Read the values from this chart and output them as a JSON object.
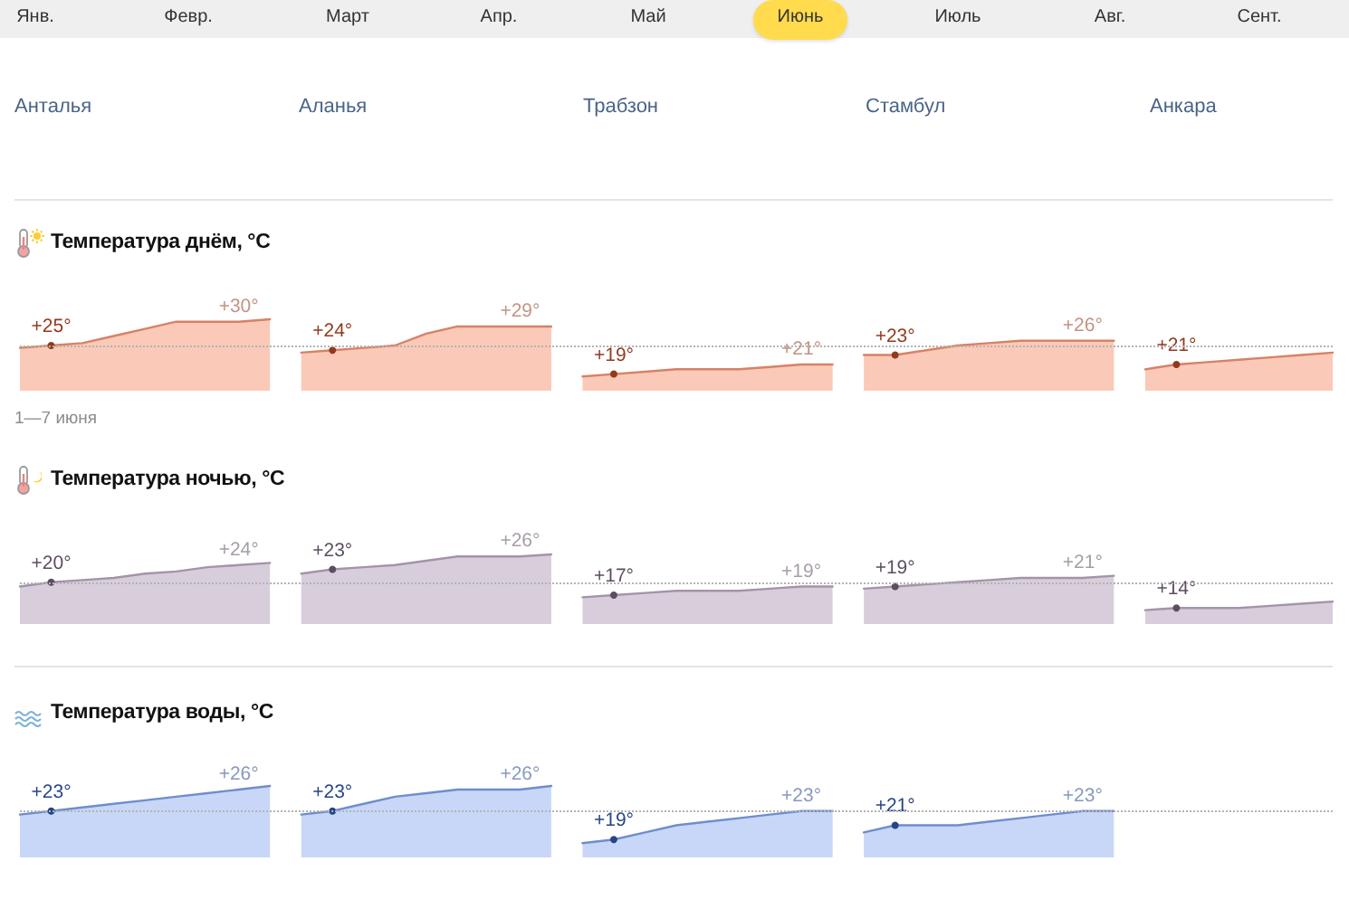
{
  "chart_data": [
    {
      "type": "other",
      "annotations": [
        "Янв.",
        "Февр.",
        "Март",
        "Апр.",
        "Май",
        "Июнь",
        "Июль",
        "Авг.",
        "Сент."
      ]
    },
    {
      "type": "other",
      "annotations": [
        "Анталья",
        "Аланья",
        "Трабзон",
        "Стамбул",
        "Анкара"
      ]
    },
    {
      "type": "area",
      "title": "Температура днём, °C",
      "categories": [
        null,
        null,
        null,
        null,
        null,
        null,
        null,
        null,
        null,
        null,
        null,
        null,
        null,
        null,
        null,
        null,
        null,
        null,
        null,
        null,
        null,
        null,
        null,
        null,
        null,
        null,
        null,
        null,
        null,
        null,
        null,
        null,
        null,
        null,
        null,
        null,
        null,
        null,
        null,
        null,
        null,
        null,
        null
      ],
      "series": [
        {
          "color": "#fbc9b8",
          "values": [
            24.5,
            25,
            25.5,
            27,
            28.5,
            30,
            30,
            30,
            30.5,
            null,
            null,
            null,
            null,
            null,
            null,
            null,
            null,
            null,
            null,
            null,
            null,
            null,
            null,
            null,
            null,
            null,
            null,
            null,
            null,
            null,
            null,
            null,
            null,
            null,
            null,
            null,
            null,
            null,
            null,
            null,
            null,
            null,
            null
          ],
          "value_labels": [
            null,
            "+25°",
            null,
            null,
            null,
            null,
            null,
            "+30°",
            null,
            null,
            null,
            null,
            null,
            null,
            null,
            null,
            null,
            null,
            null,
            null,
            null,
            null,
            null,
            null,
            null,
            null,
            null,
            null,
            null,
            null,
            null,
            null,
            null,
            null,
            null,
            null,
            null,
            null,
            null,
            null,
            null,
            null,
            null
          ]
        },
        {
          "color": "#fbc9b8",
          "values": [
            null,
            null,
            null,
            null,
            null,
            null,
            null,
            null,
            null,
            23.5,
            24,
            24.5,
            25,
            27.5,
            29,
            29,
            29,
            29,
            null,
            null,
            null,
            null,
            null,
            null,
            null,
            null,
            null,
            null,
            null,
            null,
            null,
            null,
            null,
            null,
            null,
            null,
            null,
            null,
            null,
            null,
            null,
            null,
            null
          ],
          "value_labels": [
            null,
            null,
            null,
            null,
            null,
            null,
            null,
            null,
            null,
            null,
            "+24°",
            null,
            null,
            null,
            null,
            null,
            "+29°",
            null,
            null,
            null,
            null,
            null,
            null,
            null,
            null,
            null,
            null,
            null,
            null,
            null,
            null,
            null,
            null,
            null,
            null,
            null,
            null,
            null,
            null,
            null,
            null,
            null,
            null
          ]
        },
        {
          "color": "#fbc9b8",
          "values": [
            null,
            null,
            null,
            null,
            null,
            null,
            null,
            null,
            null,
            null,
            null,
            null,
            null,
            null,
            null,
            null,
            null,
            null,
            18.5,
            19,
            19.5,
            20,
            20,
            20,
            20.5,
            21,
            21,
            null,
            null,
            null,
            null,
            null,
            null,
            null,
            null,
            null,
            null,
            null,
            null,
            null,
            null,
            null,
            null
          ],
          "value_labels": [
            null,
            null,
            null,
            null,
            null,
            null,
            null,
            null,
            null,
            null,
            null,
            null,
            null,
            null,
            null,
            null,
            null,
            null,
            null,
            "+19°",
            null,
            null,
            null,
            null,
            null,
            "+21°",
            null,
            null,
            null,
            null,
            null,
            null,
            null,
            null,
            null,
            null,
            null,
            null,
            null,
            null,
            null,
            null,
            null
          ]
        },
        {
          "color": "#fbc9b8",
          "values": [
            null,
            null,
            null,
            null,
            null,
            null,
            null,
            null,
            null,
            null,
            null,
            null,
            null,
            null,
            null,
            null,
            null,
            null,
            null,
            null,
            null,
            null,
            null,
            null,
            null,
            null,
            null,
            23,
            23,
            24,
            25,
            25.5,
            26,
            26,
            26,
            26,
            null,
            null,
            null,
            null,
            null,
            null,
            null
          ],
          "value_labels": [
            null,
            null,
            null,
            null,
            null,
            null,
            null,
            null,
            null,
            null,
            null,
            null,
            null,
            null,
            null,
            null,
            null,
            null,
            null,
            null,
            null,
            null,
            null,
            null,
            null,
            null,
            null,
            null,
            "+23°",
            null,
            null,
            null,
            null,
            null,
            "+26°",
            null,
            null,
            null,
            null,
            null,
            null,
            null,
            null
          ]
        },
        {
          "color": "#fbc9b8",
          "values": [
            null,
            null,
            null,
            null,
            null,
            null,
            null,
            null,
            null,
            null,
            null,
            null,
            null,
            null,
            null,
            null,
            null,
            null,
            null,
            null,
            null,
            null,
            null,
            null,
            null,
            null,
            null,
            null,
            null,
            null,
            null,
            null,
            null,
            null,
            null,
            null,
            20,
            21,
            21.5,
            22,
            22.5,
            23,
            23.5
          ],
          "value_labels": [
            null,
            null,
            null,
            null,
            null,
            null,
            null,
            null,
            null,
            null,
            null,
            null,
            null,
            null,
            null,
            null,
            null,
            null,
            null,
            null,
            null,
            null,
            null,
            null,
            null,
            null,
            null,
            null,
            null,
            null,
            null,
            null,
            null,
            null,
            null,
            null,
            null,
            "+21°",
            null,
            null,
            null,
            null,
            null
          ]
        }
      ],
      "ref_lines": [
        {
          "axis": "y",
          "value": 25,
          "color": "#b3b3b3",
          "line_style": "dotted"
        }
      ],
      "annotations": [
        "1—7 июня"
      ]
    },
    {
      "type": "area",
      "title": "Температура ночью, °C",
      "categories": [
        null,
        null,
        null,
        null,
        null,
        null,
        null,
        null,
        null,
        null,
        null,
        null,
        null,
        null,
        null,
        null,
        null,
        null,
        null,
        null,
        null,
        null,
        null,
        null,
        null,
        null,
        null,
        null,
        null,
        null,
        null,
        null,
        null,
        null,
        null,
        null,
        null,
        null,
        null,
        null,
        null,
        null,
        null
      ],
      "series": [
        {
          "color": "#d8cedb",
          "values": [
            19,
            20,
            20.5,
            21,
            22,
            22.5,
            23.5,
            24,
            24.5,
            null,
            null,
            null,
            null,
            null,
            null,
            null,
            null,
            null,
            null,
            null,
            null,
            null,
            null,
            null,
            null,
            null,
            null,
            null,
            null,
            null,
            null,
            null,
            null,
            null,
            null,
            null,
            null,
            null,
            null,
            null,
            null,
            null,
            null
          ],
          "value_labels": [
            null,
            "+20°",
            null,
            null,
            null,
            null,
            null,
            "+24°",
            null,
            null,
            null,
            null,
            null,
            null,
            null,
            null,
            null,
            null,
            null,
            null,
            null,
            null,
            null,
            null,
            null,
            null,
            null,
            null,
            null,
            null,
            null,
            null,
            null,
            null,
            null,
            null,
            null,
            null,
            null,
            null,
            null,
            null,
            null
          ]
        },
        {
          "color": "#d8cedb",
          "values": [
            null,
            null,
            null,
            null,
            null,
            null,
            null,
            null,
            null,
            22,
            23,
            23.5,
            24,
            25,
            26,
            26,
            26,
            26.5,
            null,
            null,
            null,
            null,
            null,
            null,
            null,
            null,
            null,
            null,
            null,
            null,
            null,
            null,
            null,
            null,
            null,
            null,
            null,
            null,
            null,
            null,
            null,
            null,
            null
          ],
          "value_labels": [
            null,
            null,
            null,
            null,
            null,
            null,
            null,
            null,
            null,
            null,
            "+23°",
            null,
            null,
            null,
            null,
            null,
            "+26°",
            null,
            null,
            null,
            null,
            null,
            null,
            null,
            null,
            null,
            null,
            null,
            null,
            null,
            null,
            null,
            null,
            null,
            null,
            null,
            null,
            null,
            null,
            null,
            null,
            null,
            null
          ]
        },
        {
          "color": "#d8cedb",
          "values": [
            null,
            null,
            null,
            null,
            null,
            null,
            null,
            null,
            null,
            null,
            null,
            null,
            null,
            null,
            null,
            null,
            null,
            null,
            16.5,
            17,
            17.5,
            18,
            18,
            18,
            18.5,
            19,
            19,
            null,
            null,
            null,
            null,
            null,
            null,
            null,
            null,
            null,
            null,
            null,
            null,
            null,
            null,
            null,
            null
          ],
          "value_labels": [
            null,
            null,
            null,
            null,
            null,
            null,
            null,
            null,
            null,
            null,
            null,
            null,
            null,
            null,
            null,
            null,
            null,
            null,
            null,
            "+17°",
            null,
            null,
            null,
            null,
            null,
            "+19°",
            null,
            null,
            null,
            null,
            null,
            null,
            null,
            null,
            null,
            null,
            null,
            null,
            null,
            null,
            null,
            null,
            null
          ]
        },
        {
          "color": "#d8cedb",
          "values": [
            null,
            null,
            null,
            null,
            null,
            null,
            null,
            null,
            null,
            null,
            null,
            null,
            null,
            null,
            null,
            null,
            null,
            null,
            null,
            null,
            null,
            null,
            null,
            null,
            null,
            null,
            null,
            18.5,
            19,
            19.5,
            20,
            20.5,
            21,
            21,
            21,
            21.5,
            null,
            null,
            null,
            null,
            null,
            null,
            null
          ],
          "value_labels": [
            null,
            null,
            null,
            null,
            null,
            null,
            null,
            null,
            null,
            null,
            null,
            null,
            null,
            null,
            null,
            null,
            null,
            null,
            null,
            null,
            null,
            null,
            null,
            null,
            null,
            null,
            null,
            null,
            "+19°",
            null,
            null,
            null,
            null,
            null,
            "+21°",
            null,
            null,
            null,
            null,
            null,
            null,
            null,
            null
          ]
        },
        {
          "color": "#d8cedb",
          "values": [
            null,
            null,
            null,
            null,
            null,
            null,
            null,
            null,
            null,
            null,
            null,
            null,
            null,
            null,
            null,
            null,
            null,
            null,
            null,
            null,
            null,
            null,
            null,
            null,
            null,
            null,
            null,
            null,
            null,
            null,
            null,
            null,
            null,
            null,
            null,
            null,
            13.5,
            14,
            14,
            14,
            14.5,
            15,
            15.5
          ],
          "value_labels": [
            null,
            null,
            null,
            null,
            null,
            null,
            null,
            null,
            null,
            null,
            null,
            null,
            null,
            null,
            null,
            null,
            null,
            null,
            null,
            null,
            null,
            null,
            null,
            null,
            null,
            null,
            null,
            null,
            null,
            null,
            null,
            null,
            null,
            null,
            null,
            null,
            null,
            "+14°",
            null,
            null,
            null,
            null,
            null
          ]
        }
      ],
      "ref_lines": [
        {
          "axis": "y",
          "value": 20,
          "color": "#b3b3b3",
          "line_style": "dotted"
        }
      ]
    },
    {
      "type": "area",
      "title": "Температура воды, °C",
      "categories": [
        null,
        null,
        null,
        null,
        null,
        null,
        null,
        null,
        null,
        null,
        null,
        null,
        null,
        null,
        null,
        null,
        null,
        null,
        null,
        null,
        null,
        null,
        null,
        null,
        null,
        null,
        null,
        null,
        null,
        null,
        null,
        null,
        null,
        null,
        null,
        null,
        null,
        null,
        null,
        null,
        null,
        null,
        null
      ],
      "series": [
        {
          "color": "#c8d7f7",
          "values": [
            22.5,
            23,
            23.5,
            24,
            24.5,
            25,
            25.5,
            26,
            26.5,
            null,
            null,
            null,
            null,
            null,
            null,
            null,
            null,
            null,
            null,
            null,
            null,
            null,
            null,
            null,
            null,
            null,
            null,
            null,
            null,
            null,
            null,
            null,
            null,
            null,
            null,
            null,
            null,
            null,
            null,
            null,
            null,
            null,
            null
          ],
          "value_labels": [
            null,
            "+23°",
            null,
            null,
            null,
            null,
            null,
            "+26°",
            null,
            null,
            null,
            null,
            null,
            null,
            null,
            null,
            null,
            null,
            null,
            null,
            null,
            null,
            null,
            null,
            null,
            null,
            null,
            null,
            null,
            null,
            null,
            null,
            null,
            null,
            null,
            null,
            null,
            null,
            null,
            null,
            null,
            null,
            null
          ]
        },
        {
          "color": "#c8d7f7",
          "values": [
            null,
            null,
            null,
            null,
            null,
            null,
            null,
            null,
            null,
            22.5,
            23,
            24,
            25,
            25.5,
            26,
            26,
            26,
            26.5,
            null,
            null,
            null,
            null,
            null,
            null,
            null,
            null,
            null,
            null,
            null,
            null,
            null,
            null,
            null,
            null,
            null,
            null,
            null,
            null,
            null,
            null,
            null,
            null,
            null
          ],
          "value_labels": [
            null,
            null,
            null,
            null,
            null,
            null,
            null,
            null,
            null,
            null,
            "+23°",
            null,
            null,
            null,
            null,
            null,
            "+26°",
            null,
            null,
            null,
            null,
            null,
            null,
            null,
            null,
            null,
            null,
            null,
            null,
            null,
            null,
            null,
            null,
            null,
            null,
            null,
            null,
            null,
            null,
            null,
            null,
            null,
            null
          ]
        },
        {
          "color": "#c8d7f7",
          "values": [
            null,
            null,
            null,
            null,
            null,
            null,
            null,
            null,
            null,
            null,
            null,
            null,
            null,
            null,
            null,
            null,
            null,
            null,
            18.5,
            19,
            20,
            21,
            21.5,
            22,
            22.5,
            23,
            23,
            null,
            null,
            null,
            null,
            null,
            null,
            null,
            null,
            null,
            null,
            null,
            null,
            null,
            null,
            null,
            null
          ],
          "value_labels": [
            null,
            null,
            null,
            null,
            null,
            null,
            null,
            null,
            null,
            null,
            null,
            null,
            null,
            null,
            null,
            null,
            null,
            null,
            null,
            "+19°",
            null,
            null,
            null,
            null,
            null,
            "+23°",
            null,
            null,
            null,
            null,
            null,
            null,
            null,
            null,
            null,
            null,
            null,
            null,
            null,
            null,
            null,
            null,
            null
          ]
        },
        {
          "color": "#c8d7f7",
          "values": [
            null,
            null,
            null,
            null,
            null,
            null,
            null,
            null,
            null,
            null,
            null,
            null,
            null,
            null,
            null,
            null,
            null,
            null,
            null,
            null,
            null,
            null,
            null,
            null,
            null,
            null,
            null,
            20,
            21,
            21,
            21,
            21.5,
            22,
            22.5,
            23,
            23,
            null,
            null,
            null,
            null,
            null,
            null,
            null
          ],
          "value_labels": [
            null,
            null,
            null,
            null,
            null,
            null,
            null,
            null,
            null,
            null,
            null,
            null,
            null,
            null,
            null,
            null,
            null,
            null,
            null,
            null,
            null,
            null,
            null,
            null,
            null,
            null,
            null,
            null,
            "+21°",
            null,
            null,
            null,
            null,
            null,
            "+23°",
            null,
            null,
            null,
            null,
            null,
            null,
            null,
            null
          ]
        }
      ],
      "ref_lines": [
        {
          "axis": "y",
          "value": 23,
          "color": "#b3b3b3",
          "line_style": "dotted"
        }
      ]
    }
  ]
}
